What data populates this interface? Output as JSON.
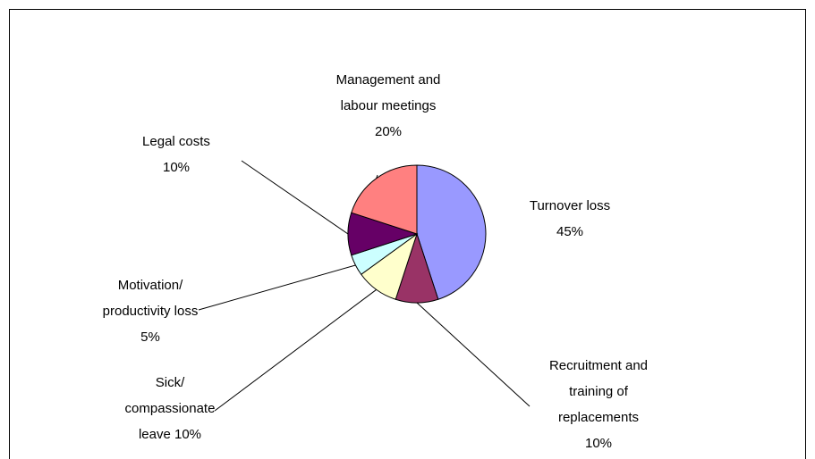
{
  "chart_data": {
    "type": "pie",
    "categories": [
      "Turnover loss",
      "Recruitment and training of replacements",
      "Sick/ compassionate leave",
      "Motivation/ productivity loss",
      "Legal costs",
      "Management and labour meetings"
    ],
    "values": [
      45,
      10,
      10,
      5,
      10,
      20
    ],
    "value_labels": [
      "45%",
      "10%",
      "10%",
      "5%",
      "10%",
      "20%"
    ],
    "colors": [
      "#9999ff",
      "#993366",
      "#ffffcc",
      "#ccffff",
      "#660066",
      "#ff8080"
    ]
  }
}
